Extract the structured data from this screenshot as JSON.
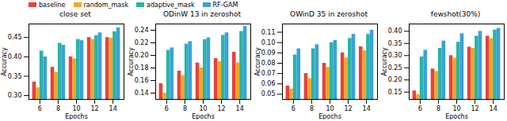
{
  "chart_data": [
    {
      "type": "bar",
      "title": "close set",
      "x_label": "Epochs",
      "y_label": "Accuracy",
      "categories": [
        6,
        8,
        10,
        12,
        14
      ],
      "series": [
        {
          "name": "baseline",
          "color": "#e8413c",
          "values": [
            0.335,
            0.373,
            0.4,
            0.45,
            0.45
          ]
        },
        {
          "name": "random_mask",
          "color": "#f5a623",
          "values": [
            0.32,
            0.36,
            0.395,
            0.445,
            0.448
          ]
        },
        {
          "name": "adaptive_mask",
          "color": "#26b5a4",
          "values": [
            0.415,
            0.435,
            0.445,
            0.455,
            0.465
          ]
        },
        {
          "name": "RF-GAM",
          "color": "#3aa0dd",
          "values": [
            0.4,
            0.43,
            0.442,
            0.462,
            0.475
          ]
        }
      ],
      "ylim": [
        0.29,
        0.485
      ],
      "yticks": [
        {
          "value": 0.3,
          "label": "0.30"
        },
        0.35,
        {
          "value": 0.4,
          "label": "0.40"
        },
        0.45
      ],
      "legend": "upper left",
      "grid": false
    },
    {
      "type": "bar",
      "title": "ODinW 13 in zeroshot",
      "x_label": "Epochs",
      "y_label": "Accuracy",
      "categories": [
        6,
        8,
        10,
        12,
        14
      ],
      "series": [
        {
          "name": "baseline",
          "color": "#e8413c",
          "values": [
            0.155,
            0.175,
            0.188,
            0.195,
            0.205
          ]
        },
        {
          "name": "random_mask",
          "color": "#f5a623",
          "values": [
            0.14,
            0.168,
            0.18,
            0.19,
            0.188
          ]
        },
        {
          "name": "adaptive_mask",
          "color": "#26b5a4",
          "values": [
            0.208,
            0.218,
            0.225,
            0.232,
            0.238
          ]
        },
        {
          "name": "RF-GAM",
          "color": "#3aa0dd",
          "values": [
            0.212,
            0.222,
            0.228,
            0.236,
            0.246
          ]
        }
      ],
      "ylim": [
        0.13,
        0.25
      ],
      "yticks": [
        0.14,
        0.16,
        0.18,
        {
          "value": 0.2,
          "label": "0.20"
        },
        0.22,
        0.24
      ],
      "grid": false
    },
    {
      "type": "bar",
      "title": "OWinD 35 in zeroshot",
      "x_label": "Epochs",
      "y_label": "Accuracy",
      "categories": [
        6,
        8,
        10,
        12,
        14
      ],
      "series": [
        {
          "name": "baseline",
          "color": "#e8413c",
          "values": [
            0.058,
            0.07,
            0.08,
            0.09,
            0.096
          ]
        },
        {
          "name": "random_mask",
          "color": "#f5a623",
          "values": [
            0.055,
            0.065,
            0.076,
            0.085,
            0.092
          ]
        },
        {
          "name": "adaptive_mask",
          "color": "#26b5a4",
          "values": [
            0.088,
            0.094,
            0.1,
            0.104,
            0.108
          ]
        },
        {
          "name": "RF-GAM",
          "color": "#3aa0dd",
          "values": [
            0.094,
            0.098,
            0.102,
            0.108,
            0.112
          ]
        }
      ],
      "ylim": [
        0.045,
        0.118
      ],
      "yticks": [
        0.05,
        0.06,
        0.07,
        0.08,
        0.09,
        {
          "value": 0.1,
          "label": "0.10"
        },
        0.11
      ],
      "grid": false
    },
    {
      "type": "bar",
      "title": "fewshot(30%)",
      "x_label": "Epochs",
      "y_label": "Accuracy",
      "categories": [
        6,
        8,
        10,
        12,
        14
      ],
      "series": [
        {
          "name": "baseline",
          "color": "#e8413c",
          "values": [
            0.155,
            0.245,
            0.3,
            0.335,
            0.38
          ]
        },
        {
          "name": "random_mask",
          "color": "#f5a623",
          "values": [
            0.14,
            0.235,
            0.29,
            0.33,
            0.37
          ]
        },
        {
          "name": "adaptive_mask",
          "color": "#26b5a4",
          "values": [
            0.295,
            0.33,
            0.355,
            0.38,
            0.405
          ]
        },
        {
          "name": "RF-GAM",
          "color": "#3aa0dd",
          "values": [
            0.322,
            0.36,
            0.39,
            0.4,
            0.412
          ]
        }
      ],
      "ylim": [
        0.12,
        0.43
      ],
      "yticks": [
        0.15,
        {
          "value": 0.2,
          "label": "0.20"
        },
        0.25,
        {
          "value": 0.3,
          "label": "0.30"
        },
        0.35,
        {
          "value": 0.4,
          "label": "0.40"
        }
      ],
      "grid": false
    }
  ]
}
